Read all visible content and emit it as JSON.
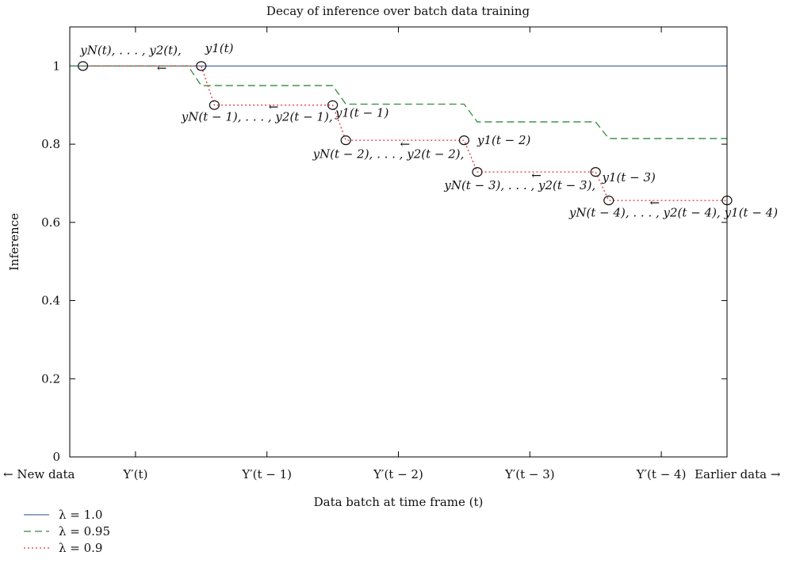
{
  "chart_data": {
    "type": "line",
    "title": "Decay of inference over batch data training",
    "xlabel": "Data batch at time frame (t)",
    "ylabel": "Inference",
    "xlim": [
      0,
      5
    ],
    "ylim": [
      0,
      1.1
    ],
    "grid": false,
    "legend_position": "bottom-left, below plot",
    "y_ticks": [
      "0",
      "0.2",
      "0.4",
      "0.6",
      "0.8",
      "1"
    ],
    "y_tick_values": [
      0,
      0.2,
      0.4,
      0.6,
      0.8,
      1.0
    ],
    "x_tick_values": [
      0.5,
      1.5,
      2.5,
      3.5,
      4.5
    ],
    "x_tick_labels": [
      "Y′(t)",
      "Y′(t − 1)",
      "Y′(t − 2)",
      "Y′(t − 3)",
      "Y′(t − 4)"
    ],
    "x_end_labels": {
      "left": "← New data",
      "right": "Earlier data →"
    },
    "series": [
      {
        "name": "λ = 1.0",
        "color": "#4a6fa5",
        "dash": "solid",
        "x": [
          0,
          5
        ],
        "y": [
          1.0,
          1.0
        ]
      },
      {
        "name": "λ = 0.95",
        "color": "#2e8b3e",
        "dash": "dashed",
        "x": [
          0,
          0.9,
          1.0,
          2.0,
          2.1,
          3.0,
          3.1,
          4.0,
          4.1,
          5.0
        ],
        "y": [
          1.0,
          1.0,
          0.95,
          0.95,
          0.9025,
          0.9025,
          0.857,
          0.857,
          0.8145,
          0.8145
        ]
      },
      {
        "name": "λ = 0.9",
        "color": "#e03030",
        "dash": "dotted",
        "x": [
          0.1,
          1.0,
          1.1,
          2.0,
          2.1,
          3.0,
          3.1,
          4.0,
          4.1,
          5.0
        ],
        "y": [
          1.0,
          1.0,
          0.9,
          0.9,
          0.81,
          0.81,
          0.729,
          0.729,
          0.6561,
          0.6561
        ],
        "markers": [
          {
            "x": 0.1,
            "y": 1.0
          },
          {
            "x": 1.0,
            "y": 1.0
          },
          {
            "x": 1.1,
            "y": 0.9
          },
          {
            "x": 2.0,
            "y": 0.9
          },
          {
            "x": 2.1,
            "y": 0.81
          },
          {
            "x": 3.0,
            "y": 0.81
          },
          {
            "x": 3.1,
            "y": 0.729
          },
          {
            "x": 4.0,
            "y": 0.729
          },
          {
            "x": 4.1,
            "y": 0.6561
          },
          {
            "x": 5.0,
            "y": 0.6561
          }
        ]
      }
    ],
    "annotations": [
      {
        "text": "yN(t), . . . , y2(t),",
        "x": 0.08,
        "y": 1.03,
        "anchor": "start"
      },
      {
        "text": "y1(t)",
        "x": 1.03,
        "y": 1.035,
        "anchor": "start"
      },
      {
        "text": "←",
        "x": 0.7,
        "y": 0.985,
        "anchor": "middle"
      },
      {
        "text": "yN(t − 1), . . . , y2(t − 1),",
        "x": 2.0,
        "y": 0.86,
        "anchor": "end"
      },
      {
        "text": "y1(t − 1)",
        "x": 2.02,
        "y": 0.87,
        "anchor": "start"
      },
      {
        "text": "←",
        "x": 1.55,
        "y": 0.885,
        "anchor": "middle"
      },
      {
        "text": "yN(t − 2), . . . , y2(t − 2),",
        "x": 3.0,
        "y": 0.765,
        "anchor": "end"
      },
      {
        "text": "y1(t − 2)",
        "x": 3.1,
        "y": 0.8,
        "anchor": "start"
      },
      {
        "text": "←",
        "x": 2.55,
        "y": 0.79,
        "anchor": "middle"
      },
      {
        "text": "yN(t − 3), . . . , y2(t − 3),",
        "x": 4.0,
        "y": 0.685,
        "anchor": "end"
      },
      {
        "text": "y1(t − 3)",
        "x": 4.05,
        "y": 0.705,
        "anchor": "start"
      },
      {
        "text": "←",
        "x": 3.55,
        "y": 0.71,
        "anchor": "middle"
      },
      {
        "text": "yN(t − 4), . . . , y2(t − 4),",
        "x": 4.95,
        "y": 0.615,
        "anchor": "end"
      },
      {
        "text": "y1(t − 4)",
        "x": 4.98,
        "y": 0.615,
        "anchor": "start"
      },
      {
        "text": "←",
        "x": 4.45,
        "y": 0.64,
        "anchor": "middle"
      }
    ]
  }
}
